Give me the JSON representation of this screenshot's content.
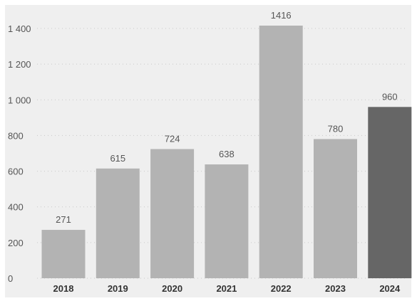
{
  "chart_data": {
    "type": "bar",
    "categories": [
      "2018",
      "2019",
      "2020",
      "2021",
      "2022",
      "2023",
      "2024"
    ],
    "values": [
      271,
      615,
      724,
      638,
      1416,
      780,
      960
    ],
    "data_labels": [
      "271",
      "615",
      "724",
      "638",
      "1416",
      "780",
      "960"
    ],
    "y_ticks": [
      0,
      200,
      400,
      600,
      800,
      1000,
      1200,
      1400
    ],
    "y_tick_labels": [
      "0",
      "200",
      "400",
      "600",
      "800",
      "1 000",
      "1 200",
      "1 400"
    ],
    "ylim": [
      0,
      1400
    ],
    "grid": "horizontal dotted",
    "title": "",
    "xlabel": "",
    "ylabel": "",
    "colors": {
      "background": "#efefef",
      "bar": "#b3b3b3",
      "highlight_bar": "#666666",
      "highlight_category": "2024",
      "grid": "#c9c9c9",
      "text": "#555555",
      "category_text": "#333333"
    }
  }
}
